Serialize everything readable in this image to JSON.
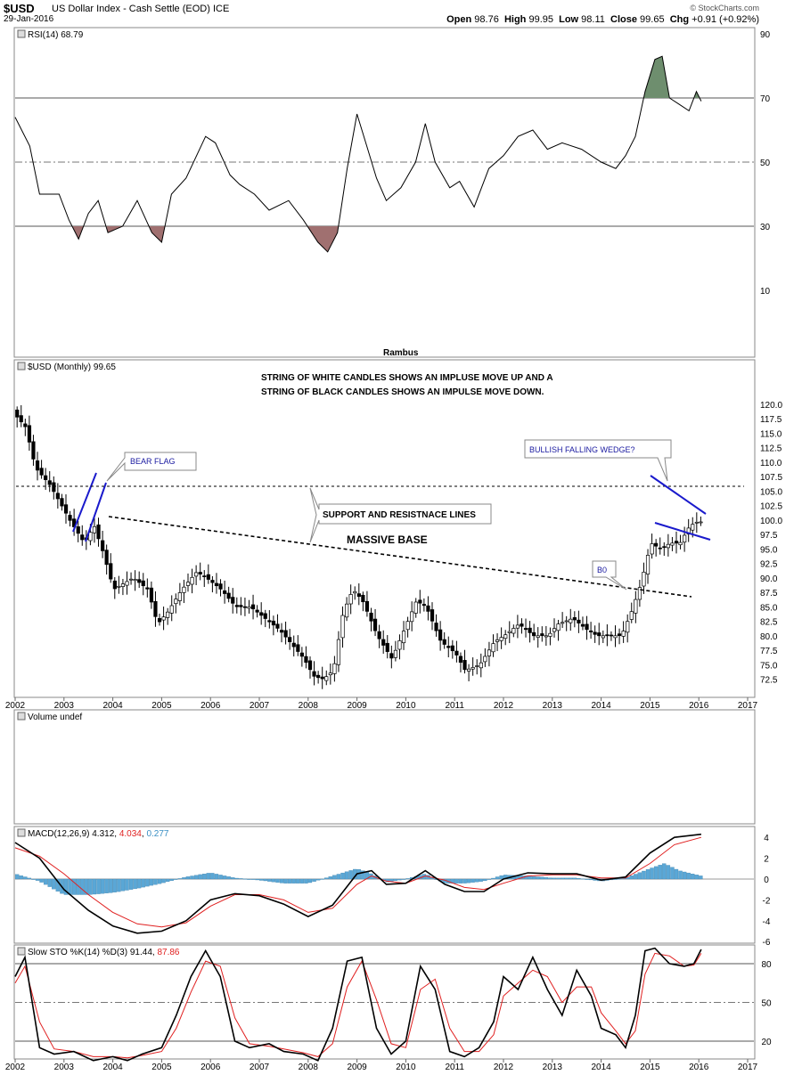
{
  "header": {
    "symbol": "$USD",
    "description": "US Dollar Index - Cash Settle (EOD) ICE",
    "date": "29-Jan-2016",
    "open_label": "Open",
    "open": "98.76",
    "high_label": "High",
    "high": "99.95",
    "low_label": "Low",
    "low": "98.11",
    "close_label": "Close",
    "close": "99.65",
    "chg_label": "Chg",
    "chg": "+0.91 (+0.92%)",
    "credit": "© StockCharts.com"
  },
  "panels": {
    "rsi_label": "RSI(14) 68.79",
    "price_label": "$USD (Monthly) 99.65",
    "volume_label": "Volume undef",
    "macd_label_a": "MACD(12,26,9)",
    "macd_v1": "4.312",
    "macd_v2": "4.034",
    "macd_v3": "0.277",
    "sto_label_a": "Slow STO %K(14) %D(3)",
    "sto_v1": "91.44",
    "sto_v2": "87.86",
    "watermark": "Rambus"
  },
  "annotations": {
    "note_line1": "STRING OF WHITE CANDLES SHOWS AN IMPLUSE MOVE UP AND A",
    "note_line2": "STRING OF BLACK CANDLES SHOWS AN IMPULSE MOVE DOWN.",
    "bear_flag": "BEAR FLAG",
    "support_resistance": "SUPPORT AND RESISTNACE LINES",
    "massive_base": "MASSIVE BASE",
    "wedge": "BULLISH FALLING WEDGE?",
    "bo": "B0"
  },
  "colors": {
    "up": "#ffffff",
    "down": "#000000",
    "line_blue": "#1a1acc",
    "hist": "#5aa7d6",
    "signal": "#e02020",
    "oversold": "#a07070",
    "overbought": "#6e8e6e"
  },
  "chart_data": [
    {
      "type": "line",
      "name": "RSI(14)",
      "x": [
        "2002",
        "2003",
        "2004",
        "2005",
        "2006",
        "2007",
        "2008",
        "2009",
        "2010",
        "2011",
        "2012",
        "2013",
        "2014",
        "2015",
        "2016"
      ],
      "yticks": [
        10,
        30,
        50,
        70,
        90
      ],
      "ylim": [
        0,
        100
      ],
      "reference_lines": [
        30,
        50,
        70
      ],
      "points": [
        [
          2002.0,
          64
        ],
        [
          2002.3,
          55
        ],
        [
          2002.5,
          40
        ],
        [
          2002.9,
          40
        ],
        [
          2003.1,
          32
        ],
        [
          2003.3,
          26
        ],
        [
          2003.5,
          34
        ],
        [
          2003.7,
          38
        ],
        [
          2003.9,
          28
        ],
        [
          2004.2,
          30
        ],
        [
          2004.5,
          38
        ],
        [
          2004.8,
          28
        ],
        [
          2005.0,
          25
        ],
        [
          2005.2,
          40
        ],
        [
          2005.5,
          45
        ],
        [
          2005.9,
          58
        ],
        [
          2006.1,
          56
        ],
        [
          2006.4,
          46
        ],
        [
          2006.6,
          43
        ],
        [
          2006.9,
          40
        ],
        [
          2007.2,
          35
        ],
        [
          2007.6,
          38
        ],
        [
          2007.9,
          32
        ],
        [
          2008.2,
          25
        ],
        [
          2008.4,
          22
        ],
        [
          2008.6,
          28
        ],
        [
          2008.8,
          48
        ],
        [
          2009.0,
          65
        ],
        [
          2009.2,
          55
        ],
        [
          2009.4,
          45
        ],
        [
          2009.6,
          38
        ],
        [
          2009.9,
          42
        ],
        [
          2010.2,
          50
        ],
        [
          2010.4,
          62
        ],
        [
          2010.6,
          50
        ],
        [
          2010.9,
          42
        ],
        [
          2011.1,
          44
        ],
        [
          2011.4,
          36
        ],
        [
          2011.7,
          48
        ],
        [
          2012.0,
          52
        ],
        [
          2012.3,
          58
        ],
        [
          2012.6,
          60
        ],
        [
          2012.9,
          54
        ],
        [
          2013.2,
          56
        ],
        [
          2013.6,
          54
        ],
        [
          2014.0,
          50
        ],
        [
          2014.3,
          48
        ],
        [
          2014.5,
          52
        ],
        [
          2014.7,
          58
        ],
        [
          2014.9,
          72
        ],
        [
          2015.1,
          82
        ],
        [
          2015.25,
          83
        ],
        [
          2015.4,
          70
        ],
        [
          2015.6,
          68
        ],
        [
          2015.8,
          66
        ],
        [
          2015.95,
          72
        ],
        [
          2016.05,
          69
        ]
      ]
    },
    {
      "type": "candlestick",
      "name": "$USD (Monthly)",
      "x": [
        "2002",
        "2003",
        "2004",
        "2005",
        "2006",
        "2007",
        "2008",
        "2009",
        "2010",
        "2011",
        "2012",
        "2013",
        "2014",
        "2015",
        "2016",
        "2017"
      ],
      "yticks": [
        72.5,
        75.0,
        77.5,
        80.0,
        82.5,
        85.0,
        87.5,
        90.0,
        92.5,
        95.0,
        97.5,
        100.0,
        102.5,
        105.0,
        107.5,
        110.0,
        112.5,
        115.0,
        117.5,
        120.0
      ],
      "ylim": [
        71.0,
        121.0
      ],
      "path": [
        [
          2002.0,
          119
        ],
        [
          2002.3,
          116
        ],
        [
          2002.5,
          109
        ],
        [
          2002.8,
          106
        ],
        [
          2003.0,
          103
        ],
        [
          2003.2,
          100
        ],
        [
          2003.5,
          96
        ],
        [
          2003.7,
          99
        ],
        [
          2003.9,
          94
        ],
        [
          2004.1,
          88
        ],
        [
          2004.3,
          89
        ],
        [
          2004.5,
          90
        ],
        [
          2004.8,
          88
        ],
        [
          2005.0,
          82
        ],
        [
          2005.2,
          84
        ],
        [
          2005.5,
          88
        ],
        [
          2005.8,
          91
        ],
        [
          2006.0,
          90
        ],
        [
          2006.3,
          88
        ],
        [
          2006.6,
          85
        ],
        [
          2006.9,
          85
        ],
        [
          2007.2,
          83
        ],
        [
          2007.5,
          81
        ],
        [
          2007.8,
          78
        ],
        [
          2008.0,
          76
        ],
        [
          2008.2,
          73
        ],
        [
          2008.4,
          72.5
        ],
        [
          2008.6,
          74
        ],
        [
          2008.8,
          84
        ],
        [
          2009.0,
          88
        ],
        [
          2009.2,
          86
        ],
        [
          2009.5,
          80
        ],
        [
          2009.8,
          76
        ],
        [
          2010.0,
          80
        ],
        [
          2010.3,
          86
        ],
        [
          2010.5,
          85
        ],
        [
          2010.8,
          79
        ],
        [
          2011.1,
          77
        ],
        [
          2011.3,
          74
        ],
        [
          2011.6,
          75
        ],
        [
          2011.9,
          79
        ],
        [
          2012.1,
          80
        ],
        [
          2012.4,
          82
        ],
        [
          2012.7,
          80
        ],
        [
          2013.0,
          80
        ],
        [
          2013.2,
          82
        ],
        [
          2013.5,
          83
        ],
        [
          2013.8,
          81
        ],
        [
          2014.0,
          80
        ],
        [
          2014.3,
          80
        ],
        [
          2014.5,
          80
        ],
        [
          2014.7,
          84
        ],
        [
          2014.9,
          89
        ],
        [
          2015.1,
          96
        ],
        [
          2015.3,
          95
        ],
        [
          2015.5,
          96
        ],
        [
          2015.7,
          96
        ],
        [
          2015.9,
          99
        ],
        [
          2016.05,
          99.65
        ]
      ]
    },
    {
      "type": "line",
      "name": "MACD(12,26,9)",
      "yticks": [
        -6,
        -4,
        -2,
        0,
        2,
        4
      ],
      "ylim": [
        -6.5,
        5
      ],
      "macd": [
        [
          2002.0,
          3.5
        ],
        [
          2002.5,
          2.0
        ],
        [
          2003.0,
          -1.0
        ],
        [
          2003.5,
          -3.0
        ],
        [
          2004.0,
          -4.5
        ],
        [
          2004.5,
          -5.2
        ],
        [
          2005.0,
          -5.0
        ],
        [
          2005.5,
          -4.0
        ],
        [
          2006.0,
          -2.0
        ],
        [
          2006.5,
          -1.4
        ],
        [
          2007.0,
          -1.6
        ],
        [
          2007.5,
          -2.4
        ],
        [
          2008.0,
          -3.6
        ],
        [
          2008.5,
          -2.5
        ],
        [
          2009.0,
          0.5
        ],
        [
          2009.3,
          0.8
        ],
        [
          2009.6,
          -0.5
        ],
        [
          2010.0,
          -0.4
        ],
        [
          2010.4,
          0.8
        ],
        [
          2010.8,
          -0.5
        ],
        [
          2011.2,
          -1.2
        ],
        [
          2011.6,
          -1.2
        ],
        [
          2012.0,
          0.0
        ],
        [
          2012.5,
          0.6
        ],
        [
          2013.0,
          0.5
        ],
        [
          2013.5,
          0.5
        ],
        [
          2014.0,
          -0.1
        ],
        [
          2014.5,
          0.2
        ],
        [
          2015.0,
          2.5
        ],
        [
          2015.5,
          4.0
        ],
        [
          2016.05,
          4.3
        ]
      ],
      "signal": [
        [
          2002.0,
          3.0
        ],
        [
          2002.5,
          2.2
        ],
        [
          2003.0,
          0.5
        ],
        [
          2003.5,
          -1.5
        ],
        [
          2004.0,
          -3.2
        ],
        [
          2004.5,
          -4.3
        ],
        [
          2005.0,
          -4.6
        ],
        [
          2005.5,
          -4.2
        ],
        [
          2006.0,
          -2.6
        ],
        [
          2006.5,
          -1.5
        ],
        [
          2007.0,
          -1.5
        ],
        [
          2007.5,
          -2.0
        ],
        [
          2008.0,
          -3.2
        ],
        [
          2008.5,
          -2.8
        ],
        [
          2009.0,
          -0.5
        ],
        [
          2009.3,
          0.3
        ],
        [
          2009.6,
          -0.2
        ],
        [
          2010.0,
          -0.4
        ],
        [
          2010.4,
          0.3
        ],
        [
          2010.8,
          -0.1
        ],
        [
          2011.2,
          -0.8
        ],
        [
          2011.6,
          -1.0
        ],
        [
          2012.0,
          -0.4
        ],
        [
          2012.5,
          0.3
        ],
        [
          2013.0,
          0.4
        ],
        [
          2013.5,
          0.4
        ],
        [
          2014.0,
          0.1
        ],
        [
          2014.5,
          0.1
        ],
        [
          2015.0,
          1.5
        ],
        [
          2015.5,
          3.3
        ],
        [
          2016.05,
          4.0
        ]
      ],
      "histogram": [
        [
          2002.0,
          0.5
        ],
        [
          2002.5,
          -0.2
        ],
        [
          2003.0,
          -1.5
        ],
        [
          2003.5,
          -1.5
        ],
        [
          2004.0,
          -1.3
        ],
        [
          2004.5,
          -0.9
        ],
        [
          2005.0,
          -0.4
        ],
        [
          2005.5,
          0.2
        ],
        [
          2006.0,
          0.6
        ],
        [
          2006.5,
          0.1
        ],
        [
          2007.0,
          -0.1
        ],
        [
          2007.5,
          -0.4
        ],
        [
          2008.0,
          -0.4
        ],
        [
          2008.5,
          0.3
        ],
        [
          2009.0,
          1.0
        ],
        [
          2009.3,
          0.5
        ],
        [
          2009.6,
          -0.3
        ],
        [
          2010.0,
          0.0
        ],
        [
          2010.4,
          0.5
        ],
        [
          2010.8,
          -0.4
        ],
        [
          2011.2,
          -0.4
        ],
        [
          2011.6,
          -0.2
        ],
        [
          2012.0,
          0.4
        ],
        [
          2012.5,
          0.3
        ],
        [
          2013.0,
          0.1
        ],
        [
          2013.5,
          0.1
        ],
        [
          2014.0,
          -0.2
        ],
        [
          2014.5,
          0.1
        ],
        [
          2015.0,
          1.0
        ],
        [
          2015.3,
          1.5
        ],
        [
          2015.6,
          0.8
        ],
        [
          2016.05,
          0.3
        ]
      ]
    },
    {
      "type": "line",
      "name": "Slow STO %K(14) %D(3)",
      "x": [
        "2002",
        "2003",
        "2004",
        "2005",
        "2006",
        "2007",
        "2008",
        "2009",
        "2010",
        "2011",
        "2012",
        "2013",
        "2014",
        "2015",
        "2016",
        "2017"
      ],
      "yticks": [
        20,
        50,
        80
      ],
      "ylim": [
        0,
        100
      ],
      "k": [
        [
          2002.0,
          70
        ],
        [
          2002.2,
          85
        ],
        [
          2002.5,
          15
        ],
        [
          2002.8,
          10
        ],
        [
          2003.2,
          12
        ],
        [
          2003.6,
          5
        ],
        [
          2004.0,
          8
        ],
        [
          2004.3,
          5
        ],
        [
          2004.6,
          10
        ],
        [
          2005.0,
          15
        ],
        [
          2005.3,
          40
        ],
        [
          2005.6,
          70
        ],
        [
          2005.9,
          90
        ],
        [
          2006.2,
          70
        ],
        [
          2006.5,
          20
        ],
        [
          2006.8,
          15
        ],
        [
          2007.2,
          18
        ],
        [
          2007.5,
          12
        ],
        [
          2007.9,
          10
        ],
        [
          2008.2,
          5
        ],
        [
          2008.5,
          30
        ],
        [
          2008.8,
          82
        ],
        [
          2009.1,
          85
        ],
        [
          2009.4,
          30
        ],
        [
          2009.7,
          10
        ],
        [
          2010.0,
          20
        ],
        [
          2010.3,
          78
        ],
        [
          2010.6,
          60
        ],
        [
          2010.9,
          12
        ],
        [
          2011.2,
          8
        ],
        [
          2011.5,
          15
        ],
        [
          2011.8,
          35
        ],
        [
          2012.0,
          70
        ],
        [
          2012.3,
          60
        ],
        [
          2012.6,
          85
        ],
        [
          2012.9,
          60
        ],
        [
          2013.2,
          40
        ],
        [
          2013.5,
          75
        ],
        [
          2013.8,
          55
        ],
        [
          2014.0,
          30
        ],
        [
          2014.3,
          25
        ],
        [
          2014.5,
          15
        ],
        [
          2014.7,
          40
        ],
        [
          2014.9,
          90
        ],
        [
          2015.1,
          92
        ],
        [
          2015.4,
          80
        ],
        [
          2015.7,
          78
        ],
        [
          2015.9,
          80
        ],
        [
          2016.05,
          91
        ]
      ],
      "d": [
        [
          2002.0,
          65
        ],
        [
          2002.2,
          78
        ],
        [
          2002.5,
          35
        ],
        [
          2002.8,
          14
        ],
        [
          2003.2,
          12
        ],
        [
          2003.6,
          8
        ],
        [
          2004.0,
          8
        ],
        [
          2004.3,
          7
        ],
        [
          2004.6,
          9
        ],
        [
          2005.0,
          12
        ],
        [
          2005.3,
          30
        ],
        [
          2005.6,
          58
        ],
        [
          2005.9,
          82
        ],
        [
          2006.2,
          78
        ],
        [
          2006.5,
          38
        ],
        [
          2006.8,
          18
        ],
        [
          2007.2,
          16
        ],
        [
          2007.5,
          14
        ],
        [
          2007.9,
          11
        ],
        [
          2008.2,
          8
        ],
        [
          2008.5,
          18
        ],
        [
          2008.8,
          62
        ],
        [
          2009.1,
          82
        ],
        [
          2009.4,
          52
        ],
        [
          2009.7,
          18
        ],
        [
          2010.0,
          15
        ],
        [
          2010.3,
          60
        ],
        [
          2010.6,
          68
        ],
        [
          2010.9,
          30
        ],
        [
          2011.2,
          12
        ],
        [
          2011.5,
          12
        ],
        [
          2011.8,
          25
        ],
        [
          2012.0,
          55
        ],
        [
          2012.3,
          65
        ],
        [
          2012.6,
          75
        ],
        [
          2012.9,
          70
        ],
        [
          2013.2,
          50
        ],
        [
          2013.5,
          62
        ],
        [
          2013.8,
          62
        ],
        [
          2014.0,
          42
        ],
        [
          2014.3,
          28
        ],
        [
          2014.5,
          18
        ],
        [
          2014.7,
          28
        ],
        [
          2014.9,
          72
        ],
        [
          2015.1,
          88
        ],
        [
          2015.4,
          86
        ],
        [
          2015.7,
          78
        ],
        [
          2015.9,
          79
        ],
        [
          2016.05,
          88
        ]
      ]
    }
  ]
}
